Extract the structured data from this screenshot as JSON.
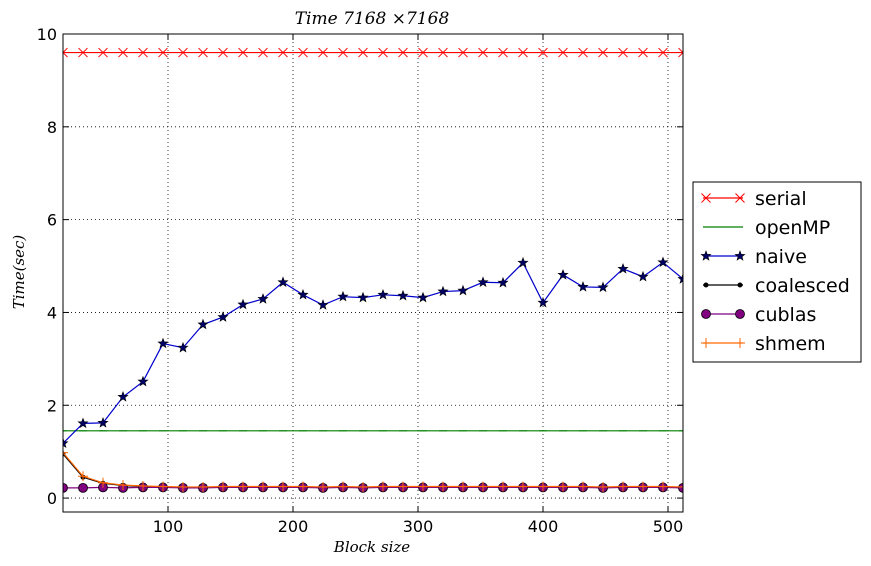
{
  "chart_data": {
    "type": "line",
    "title": "Time 7168 ×7168",
    "xlabel": "Block size",
    "ylabel": "Time(sec)",
    "xlim": [
      16,
      512
    ],
    "ylim": [
      -0.3,
      10
    ],
    "xticks": [
      100,
      200,
      300,
      400,
      500
    ],
    "yticks": [
      0,
      2,
      4,
      6,
      8,
      10
    ],
    "grid": true,
    "legend_position": "right-outside",
    "x": [
      16,
      32,
      48,
      64,
      80,
      96,
      112,
      128,
      144,
      160,
      176,
      192,
      208,
      224,
      240,
      256,
      272,
      288,
      304,
      320,
      336,
      352,
      368,
      384,
      400,
      416,
      432,
      448,
      464,
      480,
      496,
      512
    ],
    "series": [
      {
        "name": "serial",
        "color": "#ff0000",
        "marker": "x",
        "values": [
          9.6,
          9.6,
          9.6,
          9.6,
          9.6,
          9.6,
          9.6,
          9.6,
          9.6,
          9.6,
          9.6,
          9.6,
          9.6,
          9.6,
          9.6,
          9.6,
          9.6,
          9.6,
          9.6,
          9.6,
          9.6,
          9.6,
          9.6,
          9.6,
          9.6,
          9.6,
          9.6,
          9.6,
          9.6,
          9.6,
          9.6,
          9.6
        ]
      },
      {
        "name": "openMP",
        "color": "#008000",
        "marker": "hline",
        "values": [
          1.45,
          1.45,
          1.45,
          1.45,
          1.45,
          1.45,
          1.45,
          1.45,
          1.45,
          1.45,
          1.45,
          1.45,
          1.45,
          1.45,
          1.45,
          1.45,
          1.45,
          1.45,
          1.45,
          1.45,
          1.45,
          1.45,
          1.45,
          1.45,
          1.45,
          1.45,
          1.45,
          1.45,
          1.45,
          1.45,
          1.45,
          1.45
        ]
      },
      {
        "name": "naive",
        "color": "#0000cc",
        "marker": "star",
        "values": [
          1.18,
          1.61,
          1.62,
          2.18,
          2.51,
          3.33,
          3.24,
          3.74,
          3.9,
          4.17,
          4.29,
          4.65,
          4.38,
          4.16,
          4.34,
          4.32,
          4.38,
          4.36,
          4.32,
          4.45,
          4.47,
          4.65,
          4.64,
          5.07,
          4.21,
          4.81,
          4.55,
          4.54,
          4.94,
          4.77,
          5.08,
          4.72
        ]
      },
      {
        "name": "coalesced",
        "color": "#000000",
        "marker": "dot",
        "values": [
          0.95,
          0.45,
          0.32,
          0.27,
          0.25,
          0.24,
          0.23,
          0.23,
          0.24,
          0.24,
          0.24,
          0.24,
          0.24,
          0.23,
          0.24,
          0.23,
          0.24,
          0.24,
          0.24,
          0.24,
          0.24,
          0.24,
          0.24,
          0.24,
          0.24,
          0.24,
          0.24,
          0.23,
          0.24,
          0.24,
          0.24,
          0.23
        ]
      },
      {
        "name": "cublas",
        "color": "#800080",
        "marker": "circle",
        "values": [
          0.22,
          0.22,
          0.23,
          0.22,
          0.23,
          0.23,
          0.22,
          0.22,
          0.23,
          0.23,
          0.23,
          0.23,
          0.23,
          0.22,
          0.23,
          0.22,
          0.23,
          0.23,
          0.23,
          0.23,
          0.23,
          0.23,
          0.23,
          0.23,
          0.23,
          0.23,
          0.23,
          0.22,
          0.23,
          0.23,
          0.23,
          0.22
        ]
      },
      {
        "name": "shmem",
        "color": "#ff6600",
        "marker": "plus",
        "values": [
          0.98,
          0.47,
          0.33,
          0.28,
          0.26,
          0.25,
          0.24,
          0.24,
          0.25,
          0.25,
          0.25,
          0.25,
          0.25,
          0.24,
          0.25,
          0.24,
          0.25,
          0.25,
          0.25,
          0.25,
          0.25,
          0.25,
          0.25,
          0.25,
          0.25,
          0.25,
          0.25,
          0.24,
          0.25,
          0.25,
          0.25,
          0.24
        ]
      }
    ]
  }
}
